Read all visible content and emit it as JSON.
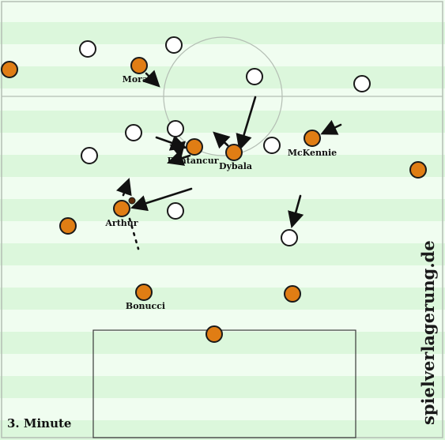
{
  "colors": {
    "stripe_light": "#f0fdf0",
    "stripe_dark": "#dcf7dc",
    "line": "#b4beb4",
    "box_line": "#3a3a3a",
    "team_home": "#e07d14",
    "team_away": "#ffffff",
    "marker_outline": "#1a1a1a",
    "arrow": "#111111"
  },
  "minute_label": "3. Minute",
  "watermark": "spielverlagerung.de",
  "players": [
    {
      "team": "home",
      "name": "Morata"
    },
    {
      "team": "home",
      "name": "Bentancur"
    },
    {
      "team": "home",
      "name": "Dybala"
    },
    {
      "team": "home",
      "name": "McKennie"
    },
    {
      "team": "home",
      "name": "Arthur"
    },
    {
      "team": "home",
      "name": "Bonucci"
    },
    {
      "team": "home",
      "name": ""
    },
    {
      "team": "home",
      "name": ""
    },
    {
      "team": "home",
      "name": ""
    },
    {
      "team": "home",
      "name": ""
    },
    {
      "team": "home",
      "name": ""
    },
    {
      "team": "away",
      "name": ""
    },
    {
      "team": "away",
      "name": ""
    },
    {
      "team": "away",
      "name": ""
    },
    {
      "team": "away",
      "name": ""
    },
    {
      "team": "away",
      "name": ""
    },
    {
      "team": "away",
      "name": ""
    },
    {
      "team": "away",
      "name": ""
    },
    {
      "team": "away",
      "name": ""
    },
    {
      "team": "away",
      "name": ""
    },
    {
      "team": "away",
      "name": ""
    }
  ]
}
